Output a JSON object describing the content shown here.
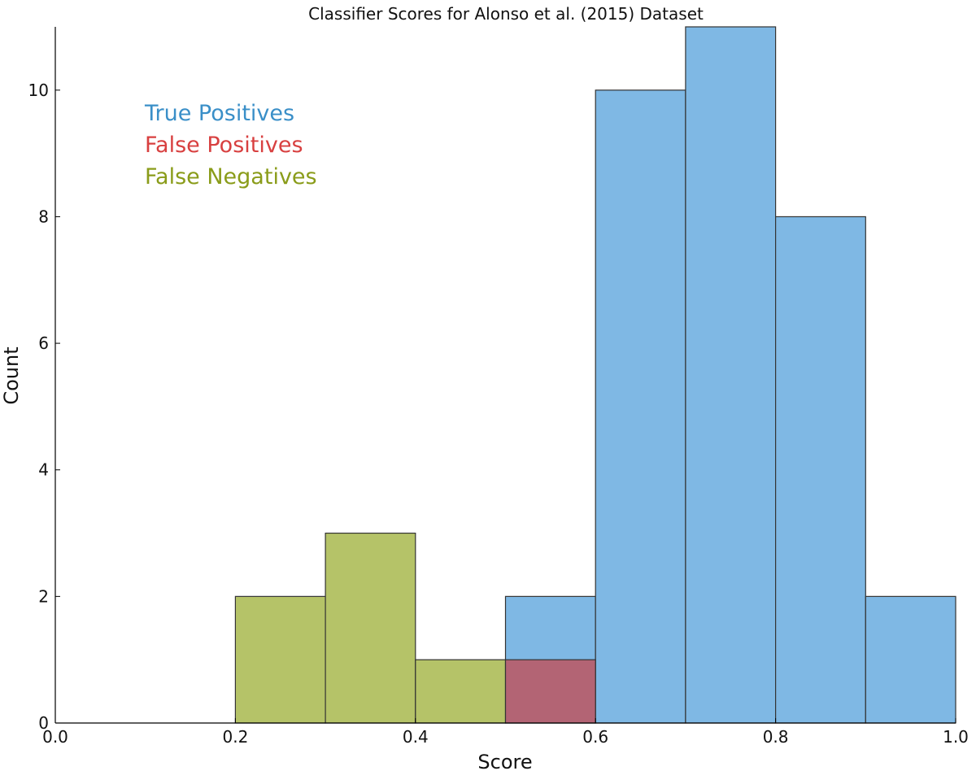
{
  "chart_data": {
    "type": "bar",
    "title": "Classifier Scores for Alonso et al. (2015) Dataset",
    "xlabel": "Score",
    "ylabel": "Count",
    "xlim": [
      0.0,
      1.0
    ],
    "ylim": [
      0,
      11
    ],
    "x_ticks": [
      "0.0",
      "0.2",
      "0.4",
      "0.6",
      "0.8",
      "1.0"
    ],
    "y_ticks": [
      "0",
      "2",
      "4",
      "6",
      "8",
      "10"
    ],
    "bin_edges": [
      0.0,
      0.1,
      0.2,
      0.3,
      0.4,
      0.5,
      0.6,
      0.7,
      0.8,
      0.9,
      1.0
    ],
    "legend_placement": "upper-left",
    "grid": false,
    "series": [
      {
        "name": "True Positives",
        "color": "#7fb8e4",
        "legend_color": "#3a8fc8",
        "values": [
          0,
          0,
          0,
          0,
          0,
          2,
          10,
          11,
          8,
          2
        ]
      },
      {
        "name": "False Positives",
        "color": "#b36474",
        "legend_color": "#d84040",
        "values": [
          0,
          0,
          0,
          0,
          0,
          1,
          0,
          0,
          0,
          0
        ]
      },
      {
        "name": "False Negatives",
        "color": "#b5c368",
        "legend_color": "#8a9c1a",
        "values": [
          0,
          0,
          2,
          3,
          1,
          0,
          0,
          0,
          0,
          0
        ]
      }
    ]
  }
}
